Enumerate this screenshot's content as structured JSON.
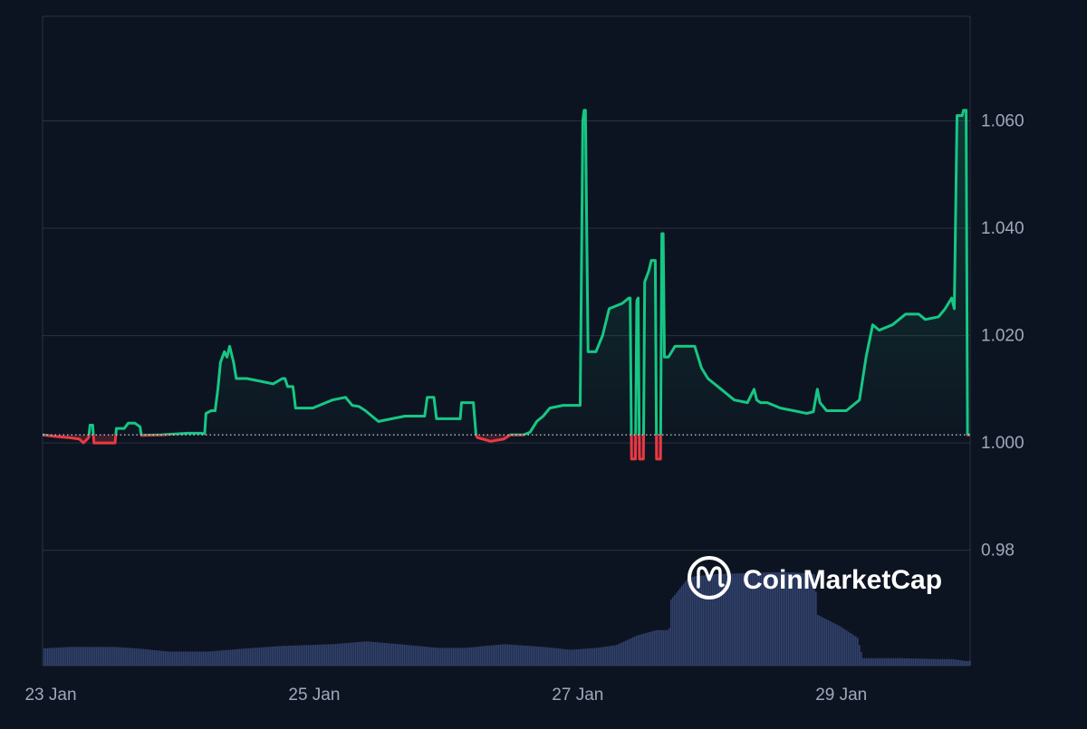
{
  "chart_data": {
    "type": "line",
    "baseline": 1.0015,
    "y_ticks": [
      "1.060",
      "1.040",
      "1.020",
      "1.000",
      "0.98"
    ],
    "x_ticks": [
      "23 Jan",
      "25 Jan",
      "27 Jan",
      "29 Jan"
    ],
    "x_tick_values": [
      0,
      2,
      4,
      6
    ],
    "x_range": [
      0,
      7.04
    ],
    "y_range": [
      0.9585,
      1.0795
    ],
    "grid": true,
    "series": [
      {
        "values": [
          [
            0.0,
            1.0015
          ],
          [
            0.1,
            1.0012
          ],
          [
            0.2,
            1.001
          ],
          [
            0.28,
            1.0007
          ],
          [
            0.31,
            1.0
          ],
          [
            0.35,
            1.001
          ],
          [
            0.36,
            1.0033
          ],
          [
            0.38,
            1.0033
          ],
          [
            0.39,
            1.0
          ],
          [
            0.55,
            1.0
          ],
          [
            0.56,
            1.0027
          ],
          [
            0.62,
            1.0027
          ],
          [
            0.65,
            1.0037
          ],
          [
            0.7,
            1.0037
          ],
          [
            0.74,
            1.003
          ],
          [
            0.75,
            1.0014
          ],
          [
            0.9,
            1.0015
          ],
          [
            1.1,
            1.0018
          ],
          [
            1.2,
            1.0018
          ],
          [
            1.23,
            1.0017
          ],
          [
            1.24,
            1.0055
          ],
          [
            1.28,
            1.006
          ],
          [
            1.31,
            1.006
          ],
          [
            1.33,
            1.01
          ],
          [
            1.35,
            1.015
          ],
          [
            1.38,
            1.017
          ],
          [
            1.4,
            1.016
          ],
          [
            1.42,
            1.018
          ],
          [
            1.45,
            1.015
          ],
          [
            1.47,
            1.012
          ],
          [
            1.55,
            1.012
          ],
          [
            1.65,
            1.0115
          ],
          [
            1.75,
            1.011
          ],
          [
            1.82,
            1.012
          ],
          [
            1.84,
            1.012
          ],
          [
            1.86,
            1.0105
          ],
          [
            1.9,
            1.0105
          ],
          [
            1.92,
            1.0065
          ],
          [
            2.05,
            1.0065
          ],
          [
            2.1,
            1.007
          ],
          [
            2.2,
            1.008
          ],
          [
            2.3,
            1.0085
          ],
          [
            2.35,
            1.007
          ],
          [
            2.4,
            1.0068
          ],
          [
            2.45,
            1.006
          ],
          [
            2.5,
            1.005
          ],
          [
            2.55,
            1.004
          ],
          [
            2.65,
            1.0045
          ],
          [
            2.75,
            1.005
          ],
          [
            2.85,
            1.005
          ],
          [
            2.9,
            1.005
          ],
          [
            2.92,
            1.0085
          ],
          [
            2.97,
            1.0085
          ],
          [
            2.99,
            1.0045
          ],
          [
            3.1,
            1.0045
          ],
          [
            3.17,
            1.0045
          ],
          [
            3.18,
            1.0075
          ],
          [
            3.27,
            1.0075
          ],
          [
            3.29,
            1.0015
          ],
          [
            3.3,
            1.001
          ],
          [
            3.4,
            1.0003
          ],
          [
            3.5,
            1.0007
          ],
          [
            3.55,
            1.0015
          ],
          [
            3.65,
            1.0015
          ],
          [
            3.7,
            1.002
          ],
          [
            3.75,
            1.004
          ],
          [
            3.8,
            1.005
          ],
          [
            3.85,
            1.0065
          ],
          [
            3.95,
            1.007
          ],
          [
            4.05,
            1.007
          ],
          [
            4.08,
            1.007
          ],
          [
            4.1,
            1.06
          ],
          [
            4.11,
            1.062
          ],
          [
            4.12,
            1.062
          ],
          [
            4.14,
            1.017
          ],
          [
            4.2,
            1.017
          ],
          [
            4.25,
            1.02
          ],
          [
            4.3,
            1.025
          ],
          [
            4.4,
            1.026
          ],
          [
            4.45,
            1.027
          ],
          [
            4.46,
            1.027
          ],
          [
            4.47,
            0.997
          ],
          [
            4.5,
            0.997
          ],
          [
            4.51,
            1.0265
          ],
          [
            4.52,
            1.027
          ],
          [
            4.53,
            0.997
          ],
          [
            4.56,
            0.997
          ],
          [
            4.57,
            1.03
          ],
          [
            4.6,
            1.032
          ],
          [
            4.62,
            1.034
          ],
          [
            4.65,
            1.034
          ],
          [
            4.66,
            0.997
          ],
          [
            4.69,
            0.997
          ],
          [
            4.7,
            1.039
          ],
          [
            4.71,
            1.039
          ],
          [
            4.72,
            1.016
          ],
          [
            4.75,
            1.016
          ],
          [
            4.8,
            1.018
          ],
          [
            4.95,
            1.018
          ],
          [
            5.0,
            1.014
          ],
          [
            5.05,
            1.012
          ],
          [
            5.15,
            1.01
          ],
          [
            5.25,
            1.008
          ],
          [
            5.35,
            1.0075
          ],
          [
            5.4,
            1.01
          ],
          [
            5.42,
            1.008
          ],
          [
            5.45,
            1.0075
          ],
          [
            5.5,
            1.0075
          ],
          [
            5.55,
            1.007
          ],
          [
            5.6,
            1.0065
          ],
          [
            5.7,
            1.006
          ],
          [
            5.8,
            1.0055
          ],
          [
            5.85,
            1.0058
          ],
          [
            5.88,
            1.01
          ],
          [
            5.9,
            1.0075
          ],
          [
            5.95,
            1.006
          ],
          [
            6.1,
            1.006
          ],
          [
            6.15,
            1.007
          ],
          [
            6.2,
            1.008
          ],
          [
            6.25,
            1.016
          ],
          [
            6.3,
            1.022
          ],
          [
            6.35,
            1.021
          ],
          [
            6.45,
            1.022
          ],
          [
            6.55,
            1.024
          ],
          [
            6.65,
            1.024
          ],
          [
            6.7,
            1.023
          ],
          [
            6.8,
            1.0235
          ],
          [
            6.85,
            1.025
          ],
          [
            6.9,
            1.027
          ],
          [
            6.92,
            1.025
          ],
          [
            6.94,
            1.061
          ],
          [
            6.98,
            1.061
          ],
          [
            6.99,
            1.062
          ],
          [
            7.01,
            1.062
          ],
          [
            7.02,
            1.0015
          ],
          [
            7.13,
            1.0015
          ],
          [
            7.14,
            1.058
          ],
          [
            7.15,
            1.066
          ],
          [
            7.16,
            1.066
          ]
        ]
      }
    ],
    "volume": {
      "values": [
        [
          0.0,
          0.185
        ],
        [
          0.2,
          0.2
        ],
        [
          0.55,
          0.2
        ],
        [
          0.75,
          0.18
        ],
        [
          0.95,
          0.15
        ],
        [
          1.25,
          0.15
        ],
        [
          1.5,
          0.18
        ],
        [
          1.8,
          0.21
        ],
        [
          2.2,
          0.23
        ],
        [
          2.45,
          0.26
        ],
        [
          2.7,
          0.23
        ],
        [
          3.0,
          0.19
        ],
        [
          3.2,
          0.19
        ],
        [
          3.5,
          0.23
        ],
        [
          3.8,
          0.2
        ],
        [
          4.0,
          0.17
        ],
        [
          4.2,
          0.19
        ],
        [
          4.35,
          0.22
        ],
        [
          4.5,
          0.32
        ],
        [
          4.65,
          0.38
        ],
        [
          4.75,
          0.38
        ],
        [
          4.76,
          0.7
        ],
        [
          4.9,
          0.95
        ],
        [
          5.1,
          0.98
        ],
        [
          5.5,
          1.0
        ],
        [
          5.7,
          1.0
        ],
        [
          5.86,
          0.98
        ],
        [
          5.87,
          0.55
        ],
        [
          6.05,
          0.42
        ],
        [
          6.18,
          0.3
        ],
        [
          6.22,
          0.08
        ],
        [
          6.5,
          0.08
        ],
        [
          6.8,
          0.07
        ],
        [
          6.9,
          0.07
        ],
        [
          7.0,
          0.05
        ],
        [
          7.16,
          0.05
        ]
      ]
    }
  },
  "colors": {
    "background": "#0d1421",
    "grid": "#2a3140",
    "axis_text": "#a1a7bb",
    "up": "#16c784",
    "down": "#ea3943",
    "volume": "#3a4a7a",
    "watermark": "#ffffff"
  },
  "watermark": {
    "text": "CoinMarketCap",
    "icon": "coinmarketcap-logo-icon"
  }
}
